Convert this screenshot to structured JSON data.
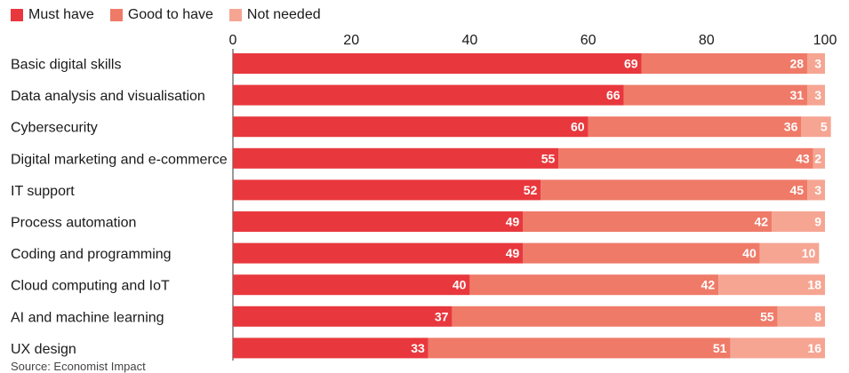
{
  "chart_data": {
    "type": "bar",
    "orientation": "horizontal",
    "stacked": true,
    "categories": [
      "Basic digital skills",
      "Data analysis and visualisation",
      "Cybersecurity",
      "Digital marketing and e-commerce",
      "IT support",
      "Process automation",
      "Coding and programming",
      "Cloud computing and IoT",
      "AI and machine learning",
      "UX design"
    ],
    "series": [
      {
        "name": "Must have",
        "color": "#e8383d",
        "values": [
          69,
          66,
          60,
          55,
          52,
          49,
          49,
          40,
          37,
          33
        ]
      },
      {
        "name": "Good to have",
        "color": "#ef7a68",
        "values": [
          28,
          31,
          36,
          43,
          45,
          42,
          40,
          42,
          55,
          51
        ]
      },
      {
        "name": "Not needed",
        "color": "#f6a593",
        "values": [
          3,
          3,
          5,
          2,
          3,
          9,
          10,
          18,
          8,
          16
        ]
      }
    ],
    "xlim": [
      0,
      100
    ],
    "xticks": [
      "0",
      "20",
      "40",
      "60",
      "80",
      "100"
    ],
    "legend": "top-left",
    "title": "",
    "xlabel": "",
    "ylabel": ""
  },
  "footnote": "Source: Economist Impact"
}
